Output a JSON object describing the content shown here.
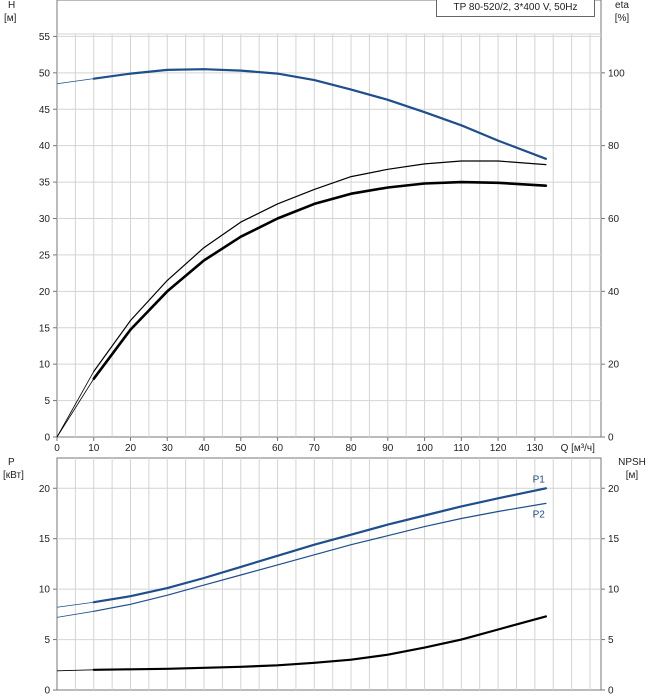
{
  "model_label": "TP 80-520/2, 3*400 V, 50Hz",
  "chart_data": [
    {
      "type": "line",
      "panel": "head-efficiency",
      "left_axis": {
        "label_lines": [
          "H",
          "[м]"
        ],
        "ylim": [
          0,
          60
        ],
        "ticks": [
          0,
          5,
          10,
          15,
          20,
          25,
          30,
          35,
          40,
          45,
          50,
          55
        ]
      },
      "right_axis": {
        "label_lines": [
          "eta",
          "[%]"
        ],
        "ylim": [
          0,
          120
        ],
        "ticks": [
          0,
          20,
          40,
          60,
          80,
          100
        ]
      },
      "x_axis": {
        "label": "Q [м³/ч]",
        "xlim": [
          0,
          148
        ],
        "ticks": [
          0,
          10,
          20,
          30,
          40,
          50,
          60,
          70,
          80,
          90,
          100,
          110,
          120,
          130
        ]
      },
      "grid": true,
      "series": [
        {
          "axis": "left",
          "color": "#1f4e8c",
          "width": 2.2,
          "x": [
            0,
            10,
            20,
            30,
            40,
            50,
            60,
            70,
            80,
            90,
            100,
            110,
            120,
            133
          ],
          "y": [
            48.5,
            49.2,
            49.9,
            50.4,
            50.5,
            50.3,
            49.9,
            49.0,
            47.7,
            46.3,
            44.6,
            42.8,
            40.7,
            38.2
          ]
        },
        {
          "axis": "right",
          "color": "#000000",
          "width": 1.2,
          "x": [
            0,
            10,
            20,
            30,
            40,
            50,
            60,
            70,
            80,
            90,
            100,
            110,
            120,
            133
          ],
          "y": [
            0,
            18,
            32,
            43,
            52,
            59,
            64,
            68,
            71.5,
            73.5,
            75,
            75.8,
            75.8,
            74.8
          ]
        },
        {
          "axis": "right",
          "color": "#000000",
          "width": 2.6,
          "x": [
            0,
            10,
            20,
            30,
            40,
            50,
            60,
            70,
            80,
            90,
            100,
            110,
            120,
            133
          ],
          "y": [
            0,
            16,
            29.5,
            40,
            48.5,
            55,
            60,
            64,
            66.8,
            68.5,
            69.6,
            70,
            69.8,
            69
          ]
        }
      ]
    },
    {
      "type": "line",
      "panel": "power-npsh",
      "left_axis": {
        "label_lines": [
          "P",
          "[кВт]"
        ],
        "ylim": [
          0,
          23
        ],
        "ticks": [
          0,
          5,
          10,
          15,
          20
        ]
      },
      "right_axis": {
        "label_lines": [
          "NPSH",
          "[м]"
        ],
        "ylim": [
          0,
          23
        ],
        "ticks": [
          0,
          5,
          10,
          15,
          20
        ]
      },
      "xlim": [
        0,
        148
      ],
      "grid": true,
      "series": [
        {
          "name": "P1",
          "axis": "left",
          "color": "#1f4e8c",
          "width": 2.2,
          "x": [
            0,
            10,
            20,
            30,
            40,
            50,
            60,
            70,
            80,
            90,
            100,
            110,
            120,
            133
          ],
          "y": [
            8.2,
            8.7,
            9.3,
            10.1,
            11.1,
            12.2,
            13.3,
            14.4,
            15.4,
            16.4,
            17.3,
            18.2,
            19.0,
            20.0
          ]
        },
        {
          "name": "P2",
          "axis": "left",
          "color": "#1f4e8c",
          "width": 1.2,
          "x": [
            0,
            10,
            20,
            30,
            40,
            50,
            60,
            70,
            80,
            90,
            100,
            110,
            120,
            133
          ],
          "y": [
            7.2,
            7.8,
            8.5,
            9.4,
            10.4,
            11.4,
            12.4,
            13.4,
            14.4,
            15.3,
            16.2,
            17.0,
            17.7,
            18.5
          ]
        },
        {
          "axis": "right",
          "color": "#000000",
          "width": 2.2,
          "x": [
            0,
            10,
            20,
            30,
            40,
            50,
            60,
            70,
            80,
            90,
            100,
            110,
            120,
            133
          ],
          "y": [
            1.9,
            2.0,
            2.05,
            2.1,
            2.2,
            2.3,
            2.45,
            2.7,
            3.0,
            3.5,
            4.2,
            5.0,
            6.0,
            7.3
          ]
        }
      ]
    }
  ]
}
